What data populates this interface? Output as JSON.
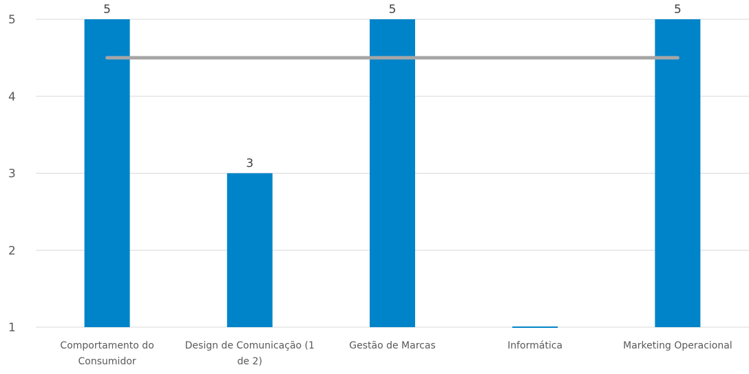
{
  "chart_data": {
    "type": "bar",
    "categories": [
      [
        "Comportamento do",
        "Consumidor"
      ],
      [
        "Design de Comunicação (1",
        "de 2)"
      ],
      [
        "Gestão de Marcas"
      ],
      [
        "Informática"
      ],
      [
        "Marketing Operacional"
      ]
    ],
    "values": [
      5,
      3,
      5,
      1,
      5
    ],
    "data_labels": [
      "5",
      "3",
      "5",
      "",
      "5"
    ],
    "reference_line": {
      "value": 4.5,
      "color": "#a6a6a6"
    },
    "ylim": [
      1,
      5
    ],
    "yticks": [
      1,
      2,
      3,
      4,
      5
    ],
    "grid": true,
    "bar_color": "#0084c9",
    "title": "",
    "xlabel": "",
    "ylabel": ""
  }
}
